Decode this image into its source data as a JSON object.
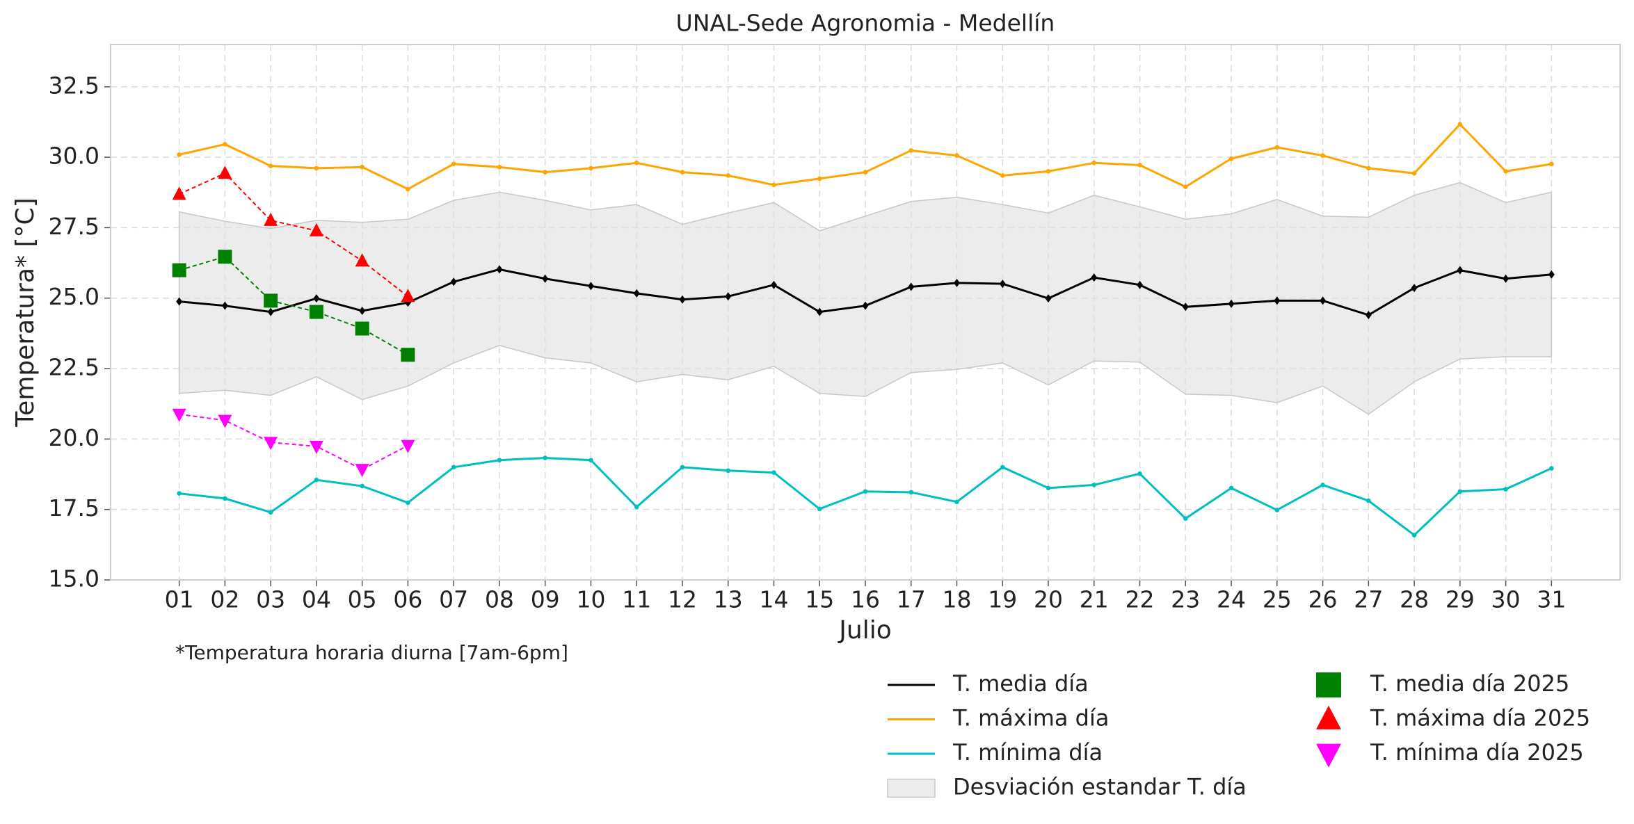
{
  "chart_data": {
    "type": "line",
    "title": "UNAL-Sede Agronomia - Medellín",
    "xlabel": "Julio",
    "ylabel": "Temperatura* [°C]",
    "annotation": "*Temperatura horaria diurna [7am-6pm]",
    "categories": [
      "01",
      "02",
      "03",
      "04",
      "05",
      "06",
      "07",
      "08",
      "09",
      "10",
      "11",
      "12",
      "13",
      "14",
      "15",
      "16",
      "17",
      "18",
      "19",
      "20",
      "21",
      "22",
      "23",
      "24",
      "25",
      "26",
      "27",
      "28",
      "29",
      "30",
      "31"
    ],
    "ylim": [
      15,
      34
    ],
    "yticks": [
      {
        "value": 15,
        "label": "15.0"
      },
      17.5,
      {
        "value": 20,
        "label": "20.0"
      },
      22.5,
      {
        "value": 25,
        "label": "25.0"
      },
      27.5,
      {
        "value": 30,
        "label": "30.0"
      },
      32.5
    ],
    "grid": true,
    "band": {
      "name": "Desviación estandar T. día",
      "color": "#e0e0e0",
      "upper": [
        28.06,
        27.73,
        27.47,
        27.76,
        27.69,
        27.8,
        28.47,
        28.76,
        28.47,
        28.13,
        28.32,
        27.62,
        28.02,
        28.39,
        27.39,
        27.91,
        28.43,
        28.58,
        28.32,
        28.02,
        28.65,
        28.24,
        27.8,
        27.99,
        28.5,
        27.91,
        27.87,
        28.65,
        29.1,
        28.39,
        28.76
      ],
      "lower": [
        21.62,
        21.73,
        21.55,
        22.21,
        21.4,
        21.88,
        22.7,
        23.32,
        22.88,
        22.7,
        22.03,
        22.29,
        22.1,
        22.58,
        21.62,
        21.51,
        22.36,
        22.47,
        22.7,
        21.92,
        22.77,
        22.73,
        21.59,
        21.55,
        21.29,
        21.88,
        20.88,
        22.03,
        22.84,
        22.92,
        22.92
      ]
    },
    "series": [
      {
        "name": "T. media día",
        "color": "#000000",
        "marker": "diamond",
        "linestyle": "solid",
        "values": [
          24.88,
          24.73,
          24.51,
          24.99,
          24.55,
          24.84,
          25.58,
          26.02,
          25.69,
          25.43,
          25.17,
          24.95,
          25.06,
          25.47,
          24.51,
          24.73,
          25.4,
          25.54,
          25.51,
          24.99,
          25.73,
          25.47,
          24.69,
          24.8,
          24.91,
          24.91,
          24.4,
          25.36,
          25.99,
          25.69,
          25.84
        ]
      },
      {
        "name": "T. máxima día",
        "color": "#ffa500",
        "marker": "circle",
        "linestyle": "solid",
        "values": [
          30.09,
          30.46,
          29.69,
          29.61,
          29.65,
          28.87,
          29.76,
          29.65,
          29.47,
          29.61,
          29.8,
          29.47,
          29.35,
          29.02,
          29.24,
          29.47,
          30.24,
          30.06,
          29.35,
          29.5,
          29.8,
          29.72,
          28.95,
          29.95,
          30.35,
          30.06,
          29.61,
          29.43,
          31.17,
          29.5,
          29.76
        ]
      },
      {
        "name": "T. mínima día",
        "color": "#00bfbf",
        "marker": "circle",
        "linestyle": "solid",
        "values": [
          18.07,
          17.89,
          17.4,
          18.55,
          18.33,
          17.74,
          19.0,
          19.25,
          19.33,
          19.25,
          17.59,
          19.0,
          18.88,
          18.81,
          17.52,
          18.14,
          18.11,
          17.77,
          19.0,
          18.26,
          18.37,
          18.77,
          17.18,
          18.26,
          17.48,
          18.37,
          17.81,
          16.59,
          18.14,
          18.22,
          18.96
        ]
      },
      {
        "name": "T. media día 2025",
        "color": "#008000",
        "marker": "square",
        "linestyle": "dashed",
        "values": [
          25.99,
          26.47,
          24.91,
          24.51,
          23.92,
          22.99,
          null,
          null,
          null,
          null,
          null,
          null,
          null,
          null,
          null,
          null,
          null,
          null,
          null,
          null,
          null,
          null,
          null,
          null,
          null,
          null,
          null,
          null,
          null,
          null,
          null
        ]
      },
      {
        "name": "T. máxima día 2025",
        "color": "#ff0000",
        "marker": "triangle-up",
        "linestyle": "dashed",
        "values": [
          28.69,
          29.43,
          27.76,
          27.39,
          26.32,
          25.06,
          null,
          null,
          null,
          null,
          null,
          null,
          null,
          null,
          null,
          null,
          null,
          null,
          null,
          null,
          null,
          null,
          null,
          null,
          null,
          null,
          null,
          null,
          null,
          null,
          null
        ]
      },
      {
        "name": "T. mínima día 2025",
        "color": "#ff00ff",
        "marker": "triangle-down",
        "linestyle": "dashed",
        "values": [
          20.88,
          20.66,
          19.88,
          19.74,
          18.92,
          19.77,
          null,
          null,
          null,
          null,
          null,
          null,
          null,
          null,
          null,
          null,
          null,
          null,
          null,
          null,
          null,
          null,
          null,
          null,
          null,
          null,
          null,
          null,
          null,
          null,
          null
        ]
      }
    ]
  }
}
